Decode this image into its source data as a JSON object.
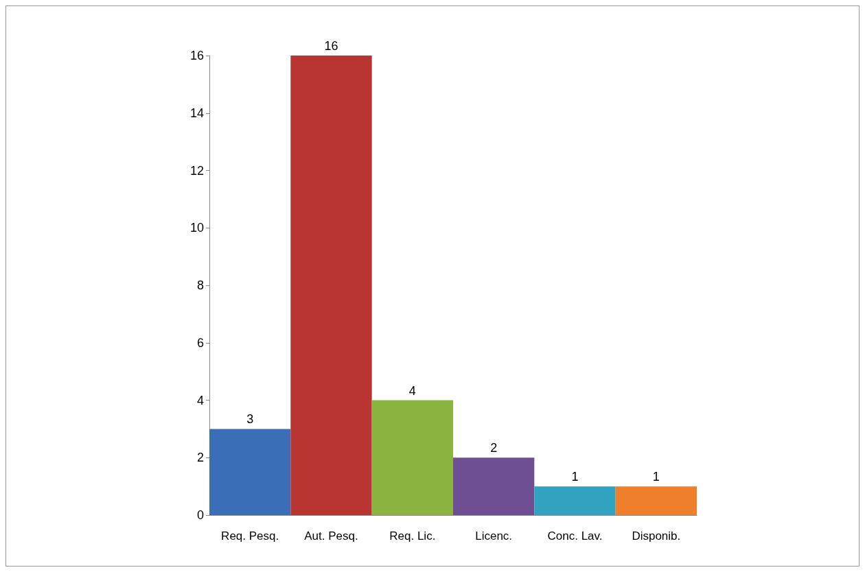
{
  "chart_data": {
    "type": "bar",
    "categories": [
      "Req. Pesq.",
      "Aut. Pesq.",
      "Req. Lic.",
      "Licenc.",
      "Conc. Lav.",
      "Disponib."
    ],
    "values": [
      3,
      16,
      4,
      2,
      1,
      1
    ],
    "colors": [
      "#3a6fb8",
      "#b83532",
      "#8ab43f",
      "#6e4f94",
      "#31a3c0",
      "#ef7f2a"
    ],
    "ylim": [
      0,
      16
    ],
    "yticks": [
      0,
      2,
      4,
      6,
      8,
      10,
      12,
      14,
      16
    ],
    "data_labels": true,
    "grid": false
  }
}
